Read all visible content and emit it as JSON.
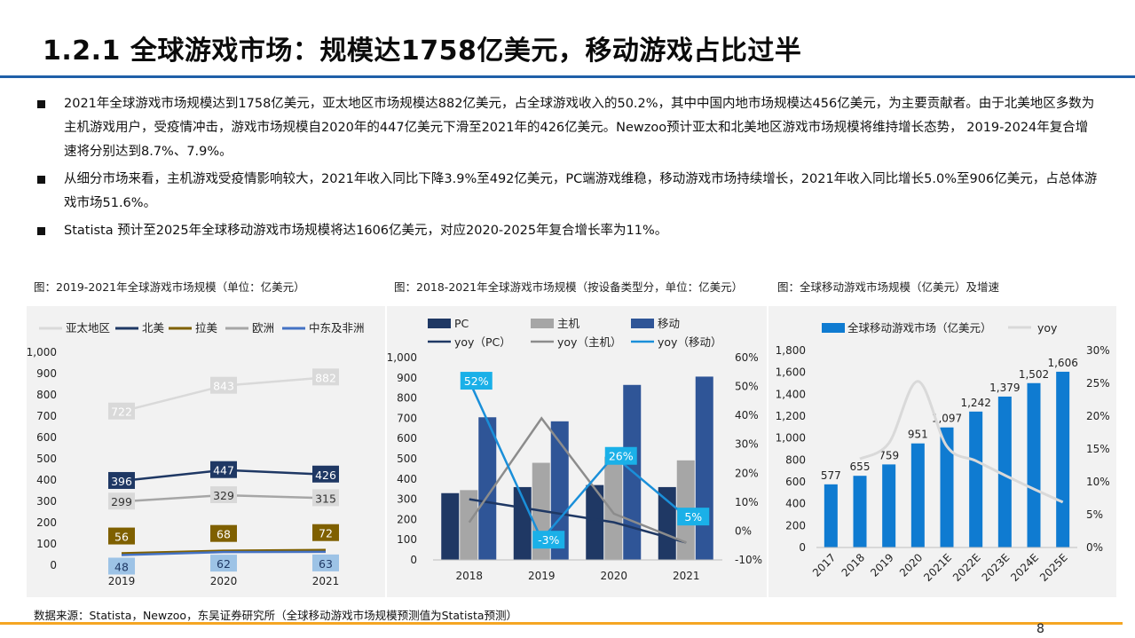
{
  "title": "1.2.1 全球游戏市场：规模达1758亿美元，移动游戏占比过半",
  "bullets": [
    "2021年全球游戏市场规模达到1758亿美元，亚太地区市场规模达882亿美元，占全球游戏收入的50.2%，其中中国内地市场规模达456亿美元，为主要贡献者。由于北美地区多数为主机游戏用户，受疫情冲击，游戏市场规模自2020年的447亿美元下滑至2021年的426亿美元。Newzoo预计亚太和北美地区游戏市场规模将维持增长态势， 2019-2024年复合增速将分别达到8.7%、7.9%。",
    "从细分市场来看，主机游戏受疫情影响较大，2021年收入同比下降3.9%至492亿美元，PC端游戏维稳，移动游戏市场持续增长，2021年收入同比增长5.0%至906亿美元，占总体游戏市场51.6%。",
    "Statista 预计至2025年全球移动游戏市场规模将达1606亿美元，对应2020-2025年复合增长率为11%。"
  ],
  "captions": [
    "图：2019-2021年全球游戏市场规模（单位：亿美元）",
    "图：2018-2021年全球游戏市场规模（按设备类型分，单位：亿美元）",
    "图：全球移动游戏市场规模（亿美元）及增速"
  ],
  "source": "数据来源：Statista，Newzoo，东吴证券研究所（全球移动游戏市场规模预测值为Statista预测）",
  "page_number": "8",
  "chart_data": [
    {
      "type": "line",
      "x": [
        "2019",
        "2020",
        "2021"
      ],
      "ylim": [
        0,
        1000
      ],
      "yticks": [
        "0",
        "100",
        "200",
        "300",
        "400",
        "500",
        "600",
        "700",
        "800",
        "900",
        "1,000"
      ],
      "legend_position": "top",
      "series": [
        {
          "name": "亚太地区",
          "values": [
            722,
            843,
            882
          ],
          "color": "#d9d9d9",
          "label_bg": "#d9d9d9",
          "label_fg": "#ffffff"
        },
        {
          "name": "北美",
          "values": [
            396,
            447,
            426
          ],
          "color": "#1f3864",
          "label_bg": "#1f3864",
          "label_fg": "#ffffff"
        },
        {
          "name": "拉美",
          "values": [
            56,
            68,
            72
          ],
          "color": "#7f6000",
          "label_bg": "#7f6000",
          "label_fg": "#ffffff"
        },
        {
          "name": "欧洲",
          "values": [
            299,
            329,
            315
          ],
          "color": "#a6a6a6",
          "label_bg": "#d9d9d9",
          "label_fg": "#333333"
        },
        {
          "name": "中东及非洲",
          "values": [
            48,
            62,
            63
          ],
          "color": "#4472c4",
          "label_bg": "#9dc3e6",
          "label_fg": "#1f3864"
        }
      ]
    },
    {
      "type": "bar",
      "categories": [
        "2018",
        "2019",
        "2020",
        "2021"
      ],
      "ylim": [
        0,
        1000
      ],
      "yticks": [
        "0",
        "100",
        "200",
        "300",
        "400",
        "500",
        "600",
        "700",
        "800",
        "900",
        "1,000"
      ],
      "y2lim": [
        -10,
        60
      ],
      "y2ticks": [
        "-10%",
        "0%",
        "10%",
        "20%",
        "30%",
        "40%",
        "50%",
        "60%"
      ],
      "legend_position": "top",
      "series": [
        {
          "name": "PC",
          "values": [
            330,
            360,
            370,
            360
          ],
          "color": "#1f3864"
        },
        {
          "name": "主机",
          "values": [
            345,
            480,
            510,
            492
          ],
          "color": "#a6a6a6"
        },
        {
          "name": "移动",
          "values": [
            705,
            685,
            865,
            906
          ],
          "color": "#2f5597"
        }
      ],
      "lines": [
        {
          "name": "yoy（PC）",
          "values": [
            11,
            7,
            3,
            -4
          ],
          "color": "#1f3864"
        },
        {
          "name": "yoy（主机）",
          "values": [
            3,
            39,
            6,
            -4
          ],
          "color": "#8c8c8c"
        },
        {
          "name": "yoy（移动）",
          "values": [
            52,
            -3,
            26,
            5
          ],
          "color": "#1a8fd9",
          "labels": [
            "52%",
            "-3%",
            "26%",
            "5%"
          ]
        }
      ]
    },
    {
      "type": "bar",
      "categories": [
        "2017",
        "2018",
        "2019",
        "2020",
        "2021E",
        "2022E",
        "2023E",
        "2024E",
        "2025E"
      ],
      "ylim": [
        0,
        1800
      ],
      "yticks": [
        "0",
        "200",
        "400",
        "600",
        "800",
        "1,000",
        "1,200",
        "1,400",
        "1,600",
        "1,800"
      ],
      "y2lim": [
        0,
        30
      ],
      "y2ticks": [
        "0%",
        "5%",
        "10%",
        "15%",
        "20%",
        "25%",
        "30%"
      ],
      "legend_position": "top",
      "series": [
        {
          "name": "全球移动游戏市场（亿美元）",
          "values": [
            577,
            655,
            759,
            951,
            1097,
            1242,
            1379,
            1502,
            1606
          ],
          "labels": [
            "577",
            "655",
            "759",
            "951",
            "1,097",
            "1,242",
            "1,379",
            "1,502",
            "1,606"
          ],
          "color": "#0f7bd1"
        }
      ],
      "lines": [
        {
          "name": "yoy",
          "values": [
            null,
            13.5,
            15.9,
            25.3,
            15.4,
            13.2,
            11.0,
            8.9,
            6.9
          ],
          "color": "#d9d9d9"
        }
      ]
    }
  ]
}
